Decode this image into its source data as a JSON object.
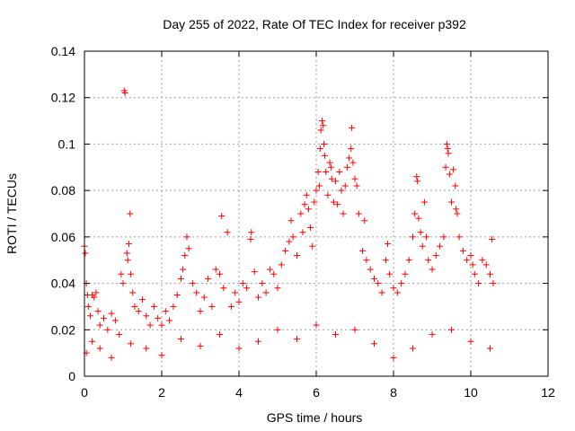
{
  "chart_data": {
    "type": "scatter",
    "title": "Day 255 of 2022, Rate Of TEC Index for receiver p392",
    "xlabel": "GPS time / hours",
    "ylabel": "ROTI / TECUs",
    "xlim": [
      0,
      12
    ],
    "ylim": [
      0,
      0.14
    ],
    "x_ticks": [
      0,
      2,
      4,
      6,
      8,
      10,
      12
    ],
    "x_tick_labels": [
      "0",
      "2",
      "4",
      "6",
      "8",
      "10",
      "12"
    ],
    "y_ticks": [
      0,
      0.02,
      0.04,
      0.06,
      0.08,
      0.1,
      0.12,
      0.14
    ],
    "y_tick_labels": [
      "0",
      "0.02",
      "0.04",
      "0.06",
      "0.08",
      "0.1",
      "0.12",
      "0.14"
    ],
    "grid": true,
    "marker": "+",
    "color": "#ff0000",
    "series": [
      {
        "name": "ROTI",
        "points": [
          [
            0.0,
            0.056
          ],
          [
            0.02,
            0.053
          ],
          [
            0.05,
            0.04
          ],
          [
            0.08,
            0.035
          ],
          [
            0.1,
            0.03
          ],
          [
            0.15,
            0.026
          ],
          [
            0.2,
            0.035
          ],
          [
            0.25,
            0.034
          ],
          [
            0.3,
            0.036
          ],
          [
            0.35,
            0.028
          ],
          [
            0.4,
            0.022
          ],
          [
            0.5,
            0.025
          ],
          [
            0.6,
            0.02
          ],
          [
            0.7,
            0.027
          ],
          [
            0.8,
            0.024
          ],
          [
            0.9,
            0.018
          ],
          [
            0.95,
            0.044
          ],
          [
            1.0,
            0.04
          ],
          [
            1.03,
            0.123
          ],
          [
            1.05,
            0.122
          ],
          [
            1.1,
            0.053
          ],
          [
            1.12,
            0.05
          ],
          [
            1.15,
            0.057
          ],
          [
            1.18,
            0.07
          ],
          [
            1.2,
            0.044
          ],
          [
            1.25,
            0.036
          ],
          [
            1.3,
            0.03
          ],
          [
            1.4,
            0.028
          ],
          [
            1.5,
            0.033
          ],
          [
            1.6,
            0.026
          ],
          [
            1.7,
            0.022
          ],
          [
            1.8,
            0.03
          ],
          [
            1.9,
            0.025
          ],
          [
            2.0,
            0.022
          ],
          [
            2.1,
            0.028
          ],
          [
            2.2,
            0.024
          ],
          [
            2.3,
            0.03
          ],
          [
            2.4,
            0.035
          ],
          [
            2.5,
            0.042
          ],
          [
            2.55,
            0.046
          ],
          [
            2.6,
            0.052
          ],
          [
            2.65,
            0.06
          ],
          [
            2.7,
            0.055
          ],
          [
            2.8,
            0.04
          ],
          [
            2.9,
            0.036
          ],
          [
            3.0,
            0.028
          ],
          [
            3.1,
            0.034
          ],
          [
            3.2,
            0.042
          ],
          [
            3.3,
            0.03
          ],
          [
            3.4,
            0.046
          ],
          [
            3.5,
            0.044
          ],
          [
            3.55,
            0.069
          ],
          [
            3.6,
            0.038
          ],
          [
            3.7,
            0.062
          ],
          [
            3.8,
            0.03
          ],
          [
            3.9,
            0.036
          ],
          [
            4.0,
            0.032
          ],
          [
            4.1,
            0.04
          ],
          [
            4.2,
            0.038
          ],
          [
            4.3,
            0.059
          ],
          [
            4.32,
            0.062
          ],
          [
            4.4,
            0.045
          ],
          [
            4.5,
            0.034
          ],
          [
            4.6,
            0.04
          ],
          [
            4.7,
            0.036
          ],
          [
            4.8,
            0.046
          ],
          [
            4.9,
            0.044
          ],
          [
            5.0,
            0.038
          ],
          [
            5.1,
            0.048
          ],
          [
            5.2,
            0.054
          ],
          [
            5.3,
            0.058
          ],
          [
            5.35,
            0.067
          ],
          [
            5.4,
            0.06
          ],
          [
            5.5,
            0.052
          ],
          [
            5.6,
            0.07
          ],
          [
            5.65,
            0.062
          ],
          [
            5.7,
            0.074
          ],
          [
            5.75,
            0.078
          ],
          [
            5.8,
            0.072
          ],
          [
            5.85,
            0.064
          ],
          [
            5.9,
            0.056
          ],
          [
            5.95,
            0.075
          ],
          [
            6.0,
            0.08
          ],
          [
            6.05,
            0.088
          ],
          [
            6.08,
            0.082
          ],
          [
            6.1,
            0.098
          ],
          [
            6.12,
            0.106
          ],
          [
            6.15,
            0.11
          ],
          [
            6.18,
            0.108
          ],
          [
            6.2,
            0.1
          ],
          [
            6.22,
            0.095
          ],
          [
            6.25,
            0.088
          ],
          [
            6.3,
            0.078
          ],
          [
            6.35,
            0.092
          ],
          [
            6.38,
            0.09
          ],
          [
            6.4,
            0.085
          ],
          [
            6.45,
            0.075
          ],
          [
            6.5,
            0.084
          ],
          [
            6.55,
            0.074
          ],
          [
            6.6,
            0.088
          ],
          [
            6.65,
            0.08
          ],
          [
            6.7,
            0.07
          ],
          [
            6.75,
            0.082
          ],
          [
            6.8,
            0.09
          ],
          [
            6.85,
            0.094
          ],
          [
            6.9,
            0.098
          ],
          [
            6.92,
            0.107
          ],
          [
            6.95,
            0.092
          ],
          [
            7.0,
            0.085
          ],
          [
            7.05,
            0.082
          ],
          [
            7.1,
            0.07
          ],
          [
            7.2,
            0.054
          ],
          [
            7.25,
            0.067
          ],
          [
            7.3,
            0.05
          ],
          [
            7.4,
            0.046
          ],
          [
            7.5,
            0.042
          ],
          [
            7.6,
            0.04
          ],
          [
            7.7,
            0.036
          ],
          [
            7.8,
            0.05
          ],
          [
            7.85,
            0.057
          ],
          [
            7.9,
            0.044
          ],
          [
            8.0,
            0.038
          ],
          [
            8.1,
            0.036
          ],
          [
            8.2,
            0.04
          ],
          [
            8.3,
            0.044
          ],
          [
            8.4,
            0.05
          ],
          [
            8.5,
            0.06
          ],
          [
            8.55,
            0.07
          ],
          [
            8.6,
            0.086
          ],
          [
            8.62,
            0.084
          ],
          [
            8.65,
            0.068
          ],
          [
            8.7,
            0.062
          ],
          [
            8.75,
            0.056
          ],
          [
            8.8,
            0.075
          ],
          [
            8.85,
            0.06
          ],
          [
            8.9,
            0.05
          ],
          [
            9.0,
            0.046
          ],
          [
            9.1,
            0.052
          ],
          [
            9.2,
            0.056
          ],
          [
            9.3,
            0.06
          ],
          [
            9.35,
            0.09
          ],
          [
            9.38,
            0.1
          ],
          [
            9.4,
            0.098
          ],
          [
            9.42,
            0.096
          ],
          [
            9.45,
            0.087
          ],
          [
            9.5,
            0.075
          ],
          [
            9.55,
            0.089
          ],
          [
            9.6,
            0.082
          ],
          [
            9.62,
            0.072
          ],
          [
            9.65,
            0.07
          ],
          [
            9.7,
            0.06
          ],
          [
            9.8,
            0.054
          ],
          [
            9.9,
            0.05
          ],
          [
            10.0,
            0.052
          ],
          [
            10.05,
            0.048
          ],
          [
            10.1,
            0.044
          ],
          [
            10.2,
            0.04
          ],
          [
            10.3,
            0.05
          ],
          [
            10.4,
            0.048
          ],
          [
            10.5,
            0.044
          ],
          [
            10.55,
            0.059
          ],
          [
            10.58,
            0.04
          ],
          [
            0.05,
            0.01
          ],
          [
            0.2,
            0.015
          ],
          [
            0.4,
            0.012
          ],
          [
            0.7,
            0.008
          ],
          [
            1.2,
            0.014
          ],
          [
            1.6,
            0.012
          ],
          [
            2.0,
            0.009
          ],
          [
            2.5,
            0.016
          ],
          [
            3.0,
            0.013
          ],
          [
            3.5,
            0.018
          ],
          [
            4.0,
            0.012
          ],
          [
            4.5,
            0.015
          ],
          [
            5.0,
            0.02
          ],
          [
            5.5,
            0.016
          ],
          [
            6.0,
            0.022
          ],
          [
            6.5,
            0.018
          ],
          [
            7.0,
            0.02
          ],
          [
            7.5,
            0.014
          ],
          [
            8.0,
            0.008
          ],
          [
            8.5,
            0.012
          ],
          [
            9.0,
            0.018
          ],
          [
            9.5,
            0.02
          ],
          [
            10.0,
            0.015
          ],
          [
            10.5,
            0.012
          ]
        ]
      }
    ]
  }
}
